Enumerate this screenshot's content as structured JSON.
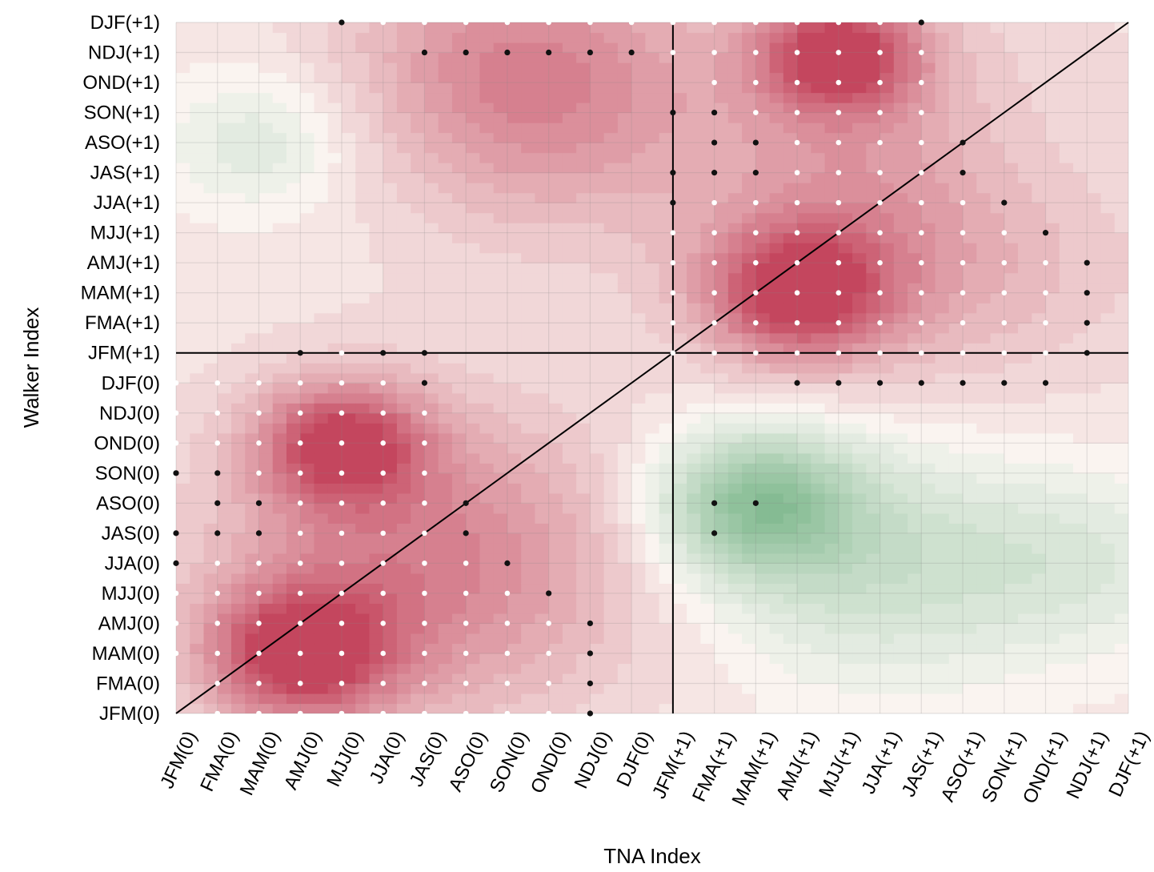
{
  "chart_data": {
    "type": "heatmap",
    "title": "",
    "xlabel": "TNA Index",
    "ylabel": "Walker Index",
    "x_categories": [
      "JFM(0)",
      "FMA(0)",
      "MAM(0)",
      "AMJ(0)",
      "MJJ(0)",
      "JJA(0)",
      "JAS(0)",
      "ASO(0)",
      "SON(0)",
      "OND(0)",
      "NDJ(0)",
      "DJF(0)",
      "JFM(+1)",
      "FMA(+1)",
      "MAM(+1)",
      "AMJ(+1)",
      "MJJ(+1)",
      "JJA(+1)",
      "JAS(+1)",
      "ASO(+1)",
      "SON(+1)",
      "OND(+1)",
      "NDJ(+1)",
      "DJF(+1)"
    ],
    "y_categories": [
      "JFM(0)",
      "FMA(0)",
      "MAM(0)",
      "AMJ(0)",
      "MJJ(0)",
      "JJA(0)",
      "JAS(0)",
      "ASO(0)",
      "SON(0)",
      "OND(0)",
      "NDJ(0)",
      "DJF(0)",
      "JFM(+1)",
      "FMA(+1)",
      "MAM(+1)",
      "AMJ(+1)",
      "MJJ(+1)",
      "JJA(+1)",
      "JAS(+1)",
      "ASO(+1)",
      "SON(+1)",
      "OND(+1)",
      "NDJ(+1)",
      "DJF(+1)"
    ],
    "value_range": [
      -0.6,
      0.6
    ],
    "grid": true,
    "colorbar": false,
    "reference_lines": [
      "x = JFM(+1)",
      "y = JFM(+1)",
      "diagonal y = x"
    ],
    "hotspots": [
      {
        "x": 3,
        "y": 2,
        "value": 0.55,
        "spread": 2.2
      },
      {
        "x": 4,
        "y": 9,
        "value": 0.5,
        "spread": 2.0
      },
      {
        "x": 15,
        "y": 14,
        "value": 0.52,
        "spread": 2.2
      },
      {
        "x": 16,
        "y": 22,
        "value": 0.55,
        "spread": 2.0
      },
      {
        "x": 8,
        "y": 21,
        "value": 0.4,
        "spread": 4.5
      },
      {
        "x": 6,
        "y": 5,
        "value": 0.35,
        "spread": 5.0
      },
      {
        "x": 18,
        "y": 17,
        "value": 0.35,
        "spread": 5.0
      },
      {
        "x": 14,
        "y": 7,
        "value": -0.5,
        "spread": 2.4
      },
      {
        "x": 22,
        "y": 5,
        "value": -0.15,
        "spread": 3.0
      },
      {
        "x": 2,
        "y": 19,
        "value": -0.15,
        "spread": 2.2
      },
      {
        "x": 5,
        "y": 20,
        "value": -0.1,
        "spread": 4.0
      },
      {
        "x": 17,
        "y": 5,
        "value": -0.25,
        "spread": 4.0
      },
      {
        "x": 20,
        "y": 18,
        "value": -0.15,
        "spread": 3.5
      }
    ],
    "significance_markers": {
      "white": [
        [
          1,
          0
        ],
        [
          2,
          0
        ],
        [
          3,
          0
        ],
        [
          4,
          0
        ],
        [
          5,
          0
        ],
        [
          6,
          0
        ],
        [
          7,
          0
        ],
        [
          8,
          0
        ],
        [
          9,
          0
        ],
        [
          1,
          1
        ],
        [
          2,
          1
        ],
        [
          3,
          1
        ],
        [
          4,
          1
        ],
        [
          5,
          1
        ],
        [
          6,
          1
        ],
        [
          7,
          1
        ],
        [
          8,
          1
        ],
        [
          9,
          1
        ],
        [
          0,
          2
        ],
        [
          1,
          2
        ],
        [
          2,
          2
        ],
        [
          3,
          2
        ],
        [
          4,
          2
        ],
        [
          5,
          2
        ],
        [
          6,
          2
        ],
        [
          7,
          2
        ],
        [
          8,
          2
        ],
        [
          9,
          2
        ],
        [
          0,
          3
        ],
        [
          1,
          3
        ],
        [
          2,
          3
        ],
        [
          3,
          3
        ],
        [
          4,
          3
        ],
        [
          5,
          3
        ],
        [
          6,
          3
        ],
        [
          7,
          3
        ],
        [
          8,
          3
        ],
        [
          9,
          3
        ],
        [
          0,
          4
        ],
        [
          1,
          4
        ],
        [
          2,
          4
        ],
        [
          3,
          4
        ],
        [
          4,
          4
        ],
        [
          5,
          4
        ],
        [
          6,
          4
        ],
        [
          7,
          4
        ],
        [
          8,
          4
        ],
        [
          1,
          5
        ],
        [
          2,
          5
        ],
        [
          3,
          5
        ],
        [
          4,
          5
        ],
        [
          5,
          5
        ],
        [
          6,
          5
        ],
        [
          7,
          5
        ],
        [
          3,
          6
        ],
        [
          4,
          6
        ],
        [
          5,
          6
        ],
        [
          6,
          6
        ],
        [
          3,
          7
        ],
        [
          4,
          7
        ],
        [
          5,
          7
        ],
        [
          6,
          7
        ],
        [
          2,
          8
        ],
        [
          3,
          8
        ],
        [
          4,
          8
        ],
        [
          5,
          8
        ],
        [
          6,
          8
        ],
        [
          0,
          9
        ],
        [
          1,
          9
        ],
        [
          2,
          9
        ],
        [
          3,
          9
        ],
        [
          4,
          9
        ],
        [
          5,
          9
        ],
        [
          6,
          9
        ],
        [
          0,
          10
        ],
        [
          1,
          10
        ],
        [
          2,
          10
        ],
        [
          3,
          10
        ],
        [
          4,
          10
        ],
        [
          5,
          10
        ],
        [
          6,
          10
        ],
        [
          0,
          11
        ],
        [
          1,
          11
        ],
        [
          2,
          11
        ],
        [
          3,
          11
        ],
        [
          4,
          11
        ],
        [
          5,
          11
        ],
        [
          4,
          12
        ],
        [
          12,
          12
        ],
        [
          13,
          12
        ],
        [
          14,
          12
        ],
        [
          15,
          12
        ],
        [
          16,
          12
        ],
        [
          17,
          12
        ],
        [
          18,
          12
        ],
        [
          19,
          12
        ],
        [
          20,
          12
        ],
        [
          21,
          12
        ],
        [
          12,
          13
        ],
        [
          13,
          13
        ],
        [
          14,
          13
        ],
        [
          15,
          13
        ],
        [
          16,
          13
        ],
        [
          17,
          13
        ],
        [
          18,
          13
        ],
        [
          19,
          13
        ],
        [
          20,
          13
        ],
        [
          21,
          13
        ],
        [
          12,
          14
        ],
        [
          13,
          14
        ],
        [
          14,
          14
        ],
        [
          15,
          14
        ],
        [
          16,
          14
        ],
        [
          17,
          14
        ],
        [
          18,
          14
        ],
        [
          19,
          14
        ],
        [
          20,
          14
        ],
        [
          21,
          14
        ],
        [
          12,
          15
        ],
        [
          13,
          15
        ],
        [
          14,
          15
        ],
        [
          15,
          15
        ],
        [
          16,
          15
        ],
        [
          17,
          15
        ],
        [
          18,
          15
        ],
        [
          19,
          15
        ],
        [
          20,
          15
        ],
        [
          21,
          15
        ],
        [
          12,
          16
        ],
        [
          13,
          16
        ],
        [
          14,
          16
        ],
        [
          15,
          16
        ],
        [
          16,
          16
        ],
        [
          17,
          16
        ],
        [
          18,
          16
        ],
        [
          19,
          16
        ],
        [
          20,
          16
        ],
        [
          13,
          17
        ],
        [
          14,
          17
        ],
        [
          15,
          17
        ],
        [
          16,
          17
        ],
        [
          17,
          17
        ],
        [
          18,
          17
        ],
        [
          19,
          17
        ],
        [
          15,
          18
        ],
        [
          16,
          18
        ],
        [
          17,
          18
        ],
        [
          18,
          18
        ],
        [
          19,
          18
        ],
        [
          15,
          19
        ],
        [
          16,
          19
        ],
        [
          17,
          19
        ],
        [
          18,
          19
        ],
        [
          14,
          20
        ],
        [
          15,
          20
        ],
        [
          16,
          20
        ],
        [
          17,
          20
        ],
        [
          18,
          20
        ],
        [
          13,
          21
        ],
        [
          14,
          21
        ],
        [
          15,
          21
        ],
        [
          16,
          21
        ],
        [
          17,
          21
        ],
        [
          18,
          21
        ],
        [
          12,
          22
        ],
        [
          13,
          22
        ],
        [
          14,
          22
        ],
        [
          15,
          22
        ],
        [
          16,
          22
        ],
        [
          17,
          22
        ],
        [
          18,
          22
        ],
        [
          5,
          23
        ],
        [
          6,
          23
        ],
        [
          7,
          23
        ],
        [
          8,
          23
        ],
        [
          9,
          23
        ],
        [
          10,
          23
        ],
        [
          11,
          23
        ],
        [
          12,
          23
        ],
        [
          13,
          23
        ],
        [
          14,
          23
        ],
        [
          15,
          23
        ],
        [
          16,
          23
        ],
        [
          17,
          23
        ]
      ],
      "black": [
        [
          10,
          0
        ],
        [
          10,
          1
        ],
        [
          10,
          2
        ],
        [
          10,
          3
        ],
        [
          9,
          4
        ],
        [
          8,
          5
        ],
        [
          0,
          5
        ],
        [
          1,
          6
        ],
        [
          2,
          6
        ],
        [
          0,
          6
        ],
        [
          7,
          6
        ],
        [
          1,
          7
        ],
        [
          2,
          7
        ],
        [
          7,
          7
        ],
        [
          0,
          8
        ],
        [
          1,
          8
        ],
        [
          6,
          11
        ],
        [
          3,
          12
        ],
        [
          5,
          12
        ],
        [
          6,
          12
        ],
        [
          13,
          6
        ],
        [
          13,
          7
        ],
        [
          14,
          7
        ],
        [
          15,
          11
        ],
        [
          16,
          11
        ],
        [
          17,
          11
        ],
        [
          18,
          11
        ],
        [
          19,
          11
        ],
        [
          20,
          11
        ],
        [
          21,
          11
        ],
        [
          22,
          12
        ],
        [
          22,
          13
        ],
        [
          22,
          14
        ],
        [
          22,
          15
        ],
        [
          21,
          16
        ],
        [
          20,
          17
        ],
        [
          19,
          18
        ],
        [
          12,
          17
        ],
        [
          12,
          18
        ],
        [
          13,
          18
        ],
        [
          14,
          18
        ],
        [
          13,
          19
        ],
        [
          14,
          19
        ],
        [
          19,
          19
        ],
        [
          12,
          20
        ],
        [
          13,
          20
        ],
        [
          6,
          22
        ],
        [
          7,
          22
        ],
        [
          8,
          22
        ],
        [
          9,
          22
        ],
        [
          10,
          22
        ],
        [
          11,
          22
        ],
        [
          4,
          23
        ],
        [
          18,
          23
        ]
      ]
    }
  }
}
